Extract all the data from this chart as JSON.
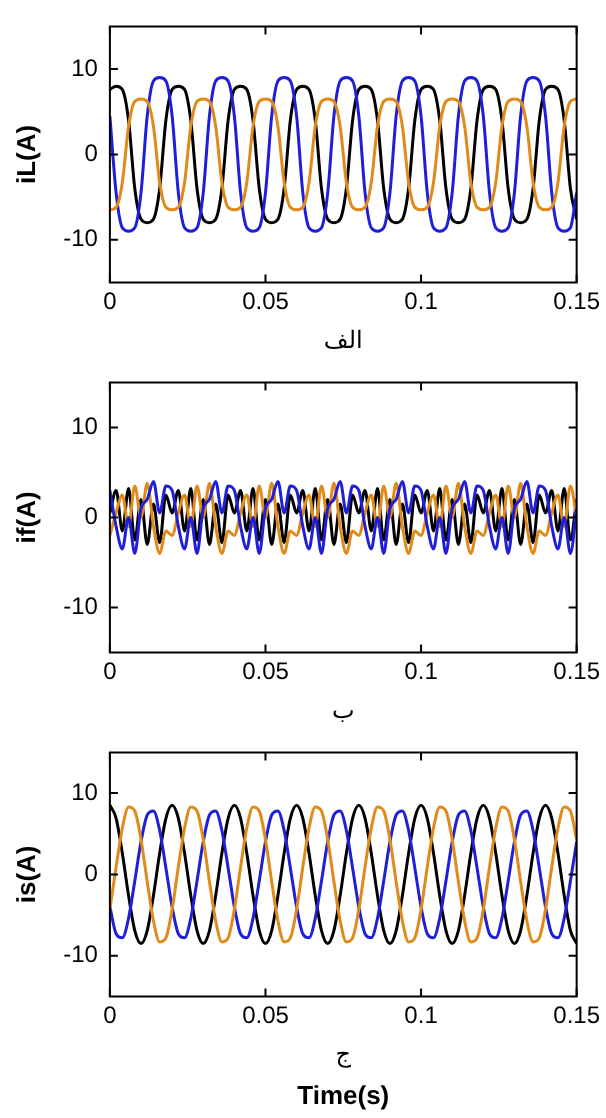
{
  "chart_data": [
    {
      "type": "line",
      "xlabel": "الف",
      "ylabel": "iL(A)",
      "xlim": [
        0,
        0.15
      ],
      "xticks": [
        0,
        0.05,
        0.1,
        0.15
      ],
      "ylim": [
        -15,
        15
      ],
      "yticks": [
        -10,
        0,
        10
      ],
      "x": [
        0,
        0.002,
        0.004,
        0.006,
        0.008,
        0.01,
        0.012,
        0.014,
        0.016,
        0.018,
        0.02,
        0.022,
        0.024,
        0.026,
        0.028,
        0.03,
        0.032,
        0.034,
        0.036,
        0.038,
        0.04,
        0.042,
        0.044,
        0.046,
        0.048,
        0.05,
        0.052,
        0.054,
        0.056,
        0.058,
        0.06,
        0.062,
        0.064,
        0.066,
        0.068,
        0.07,
        0.072,
        0.074,
        0.076,
        0.078,
        0.08,
        0.082,
        0.084,
        0.086,
        0.088,
        0.09,
        0.092,
        0.094,
        0.096,
        0.098,
        0.1,
        0.102,
        0.104,
        0.106,
        0.108,
        0.11,
        0.112,
        0.114,
        0.116,
        0.118,
        0.12,
        0.122,
        0.124,
        0.126,
        0.128,
        0.13,
        0.132,
        0.134,
        0.136,
        0.138,
        0.14,
        0.142,
        0.144,
        0.146,
        0.148,
        0.15
      ],
      "series": [
        {
          "color": "#e08a1a",
          "values": [
            -6.5,
            -6.2,
            -3.3,
            3.3,
            6.2,
            6.5,
            6.2,
            3.3,
            -3.3,
            -6.2,
            -6.5,
            -6.2,
            -3.3,
            3.3,
            6.2,
            6.5,
            6.2,
            3.3,
            -3.3,
            -6.2,
            -6.5,
            -6.2,
            -3.3,
            3.3,
            6.2,
            6.5,
            6.2,
            3.3,
            -3.3,
            -6.2,
            -6.5,
            -6.2,
            -3.3,
            3.3,
            6.2,
            6.5,
            6.2,
            3.3,
            -3.3,
            -6.2,
            -6.5,
            -6.2,
            -3.3,
            3.3,
            6.2,
            6.5,
            6.2,
            3.3,
            -3.3,
            -6.2,
            -6.5,
            -6.2,
            -3.3,
            3.3,
            6.2,
            6.5,
            6.2,
            3.3,
            -3.3,
            -6.2,
            -6.5,
            -6.2,
            -3.3,
            3.3,
            6.2,
            6.5,
            6.2,
            3.3,
            -3.3,
            -6.2,
            -6.5,
            -6.2,
            -3.3,
            3.3,
            6.2,
            6.5
          ]
        },
        {
          "color": "#1f1fd8",
          "values": [
            4.5,
            -4.5,
            -8.6,
            -9,
            -8.6,
            -4.5,
            4.5,
            8.6,
            9,
            8.6,
            4.5,
            -4.5,
            -8.6,
            -9,
            -8.6,
            -4.5,
            4.5,
            8.6,
            9,
            8.6,
            4.5,
            -4.5,
            -8.6,
            -9,
            -8.6,
            -4.5,
            4.5,
            8.6,
            9,
            8.6,
            4.5,
            -4.5,
            -8.6,
            -9,
            -8.6,
            -4.5,
            4.5,
            8.6,
            9,
            8.6,
            4.5,
            -4.5,
            -8.6,
            -9,
            -8.6,
            -4.5,
            4.5,
            8.6,
            9,
            8.6,
            4.5,
            -4.5,
            -8.6,
            -9,
            -8.6,
            -4.5,
            4.5,
            8.6,
            9,
            8.6,
            4.5,
            -4.5,
            -8.6,
            -9,
            -8.6,
            -4.5,
            4.5,
            8.6,
            9,
            8.6,
            4.5,
            -4.5,
            -8.6,
            -9,
            -8.6,
            -4.5
          ]
        },
        {
          "color": "#000000",
          "values": [
            7.6,
            8,
            7.6,
            4,
            -4,
            -7.6,
            -8,
            -7.6,
            -4,
            4,
            7.6,
            8,
            7.6,
            4,
            -4,
            -7.6,
            -8,
            -7.6,
            -4,
            4,
            7.6,
            8,
            7.6,
            4,
            -4,
            -7.6,
            -8,
            -7.6,
            -4,
            4,
            7.6,
            8,
            7.6,
            4,
            -4,
            -7.6,
            -8,
            -7.6,
            -4,
            4,
            7.6,
            8,
            7.6,
            4,
            -4,
            -7.6,
            -8,
            -7.6,
            -4,
            4,
            7.6,
            8,
            7.6,
            4,
            -4,
            -7.6,
            -8,
            -7.6,
            -4,
            4,
            7.6,
            8,
            7.6,
            4,
            -4,
            -7.6,
            -8,
            -7.6,
            -4,
            4,
            7.6,
            8,
            7.6,
            4,
            -4,
            -7.6
          ]
        }
      ]
    },
    {
      "type": "line",
      "xlabel": "ب",
      "ylabel": "if(A)",
      "xlim": [
        0,
        0.15
      ],
      "xticks": [
        0,
        0.05,
        0.1,
        0.15
      ],
      "ylim": [
        -15,
        15
      ],
      "yticks": [
        -10,
        0,
        10
      ],
      "x": [
        0,
        0.002,
        0.004,
        0.006,
        0.008,
        0.01,
        0.012,
        0.014,
        0.016,
        0.018,
        0.02,
        0.022,
        0.024,
        0.026,
        0.028,
        0.03,
        0.032,
        0.034,
        0.036,
        0.038,
        0.04,
        0.042,
        0.044,
        0.046,
        0.048,
        0.05,
        0.052,
        0.054,
        0.056,
        0.058,
        0.06,
        0.062,
        0.064,
        0.066,
        0.068,
        0.07,
        0.072,
        0.074,
        0.076,
        0.078,
        0.08,
        0.082,
        0.084,
        0.086,
        0.088,
        0.09,
        0.092,
        0.094,
        0.096,
        0.098,
        0.1,
        0.102,
        0.104,
        0.106,
        0.108,
        0.11,
        0.112,
        0.114,
        0.116,
        0.118,
        0.12,
        0.122,
        0.124,
        0.126,
        0.128,
        0.13,
        0.132,
        0.134,
        0.136,
        0.138,
        0.14,
        0.142,
        0.144,
        0.146,
        0.148,
        0.15
      ],
      "series": [
        {
          "color": "#1f1fd8",
          "values": [
            3,
            -1,
            -3.5,
            0,
            -4,
            1,
            2,
            4,
            0.5,
            3.5,
            3,
            -1,
            -3.5,
            0,
            -4,
            1,
            2,
            4,
            0.5,
            3.5,
            3,
            -1,
            -3.5,
            0,
            -4,
            1,
            2,
            4,
            0.5,
            3.5,
            3,
            -1,
            -3.5,
            0,
            -4,
            1,
            2,
            4,
            0.5,
            3.5,
            3,
            -1,
            -3.5,
            0,
            -4,
            1,
            2,
            4,
            0.5,
            3.5,
            3,
            -1,
            -3.5,
            0,
            -4,
            1,
            2,
            4,
            0.5,
            3.5,
            3,
            -1,
            -3.5,
            0,
            -4,
            1,
            2,
            4,
            0.5,
            3.5,
            3,
            -1,
            -3.5,
            0,
            -4,
            1
          ]
        },
        {
          "color": "#e08a1a",
          "values": [
            -2,
            0.5,
            2.5,
            -1,
            3.5,
            0,
            3.8,
            -1,
            -4,
            -1.5,
            -2,
            0.5,
            2.5,
            -1,
            3.5,
            0,
            3.8,
            -1,
            -4,
            -1.5,
            -2,
            0.5,
            2.5,
            -1,
            3.5,
            0,
            3.8,
            -1,
            -4,
            -1.5,
            -2,
            0.5,
            2.5,
            -1,
            3.5,
            0,
            3.8,
            -1,
            -4,
            -1.5,
            -2,
            0.5,
            2.5,
            -1,
            3.5,
            0,
            3.8,
            -1,
            -4,
            -1.5,
            -2,
            0.5,
            2.5,
            -1,
            3.5,
            0,
            3.8,
            -1,
            -4,
            -1.5,
            -2,
            0.5,
            2.5,
            -1,
            3.5,
            0,
            3.8,
            -1,
            -4,
            -1.5,
            -2,
            0.5,
            2.5,
            -1,
            3.5,
            0
          ]
        },
        {
          "color": "#000000",
          "values": [
            0.5,
            3,
            -1.5,
            3.2,
            -2.5,
            2,
            -3,
            1.5,
            -2.8,
            2.5,
            0.5,
            3,
            -1.5,
            3.2,
            -2.5,
            2,
            -3,
            1.5,
            -2.8,
            2.5,
            0.5,
            3,
            -1.5,
            3.2,
            -2.5,
            2,
            -3,
            1.5,
            -2.8,
            2.5,
            0.5,
            3,
            -1.5,
            3.2,
            -2.5,
            2,
            -3,
            1.5,
            -2.8,
            2.5,
            0.5,
            3,
            -1.5,
            3.2,
            -2.5,
            2,
            -3,
            1.5,
            -2.8,
            2.5,
            0.5,
            3,
            -1.5,
            3.2,
            -2.5,
            2,
            -3,
            1.5,
            -2.8,
            2.5,
            0.5,
            3,
            -1.5,
            3.2,
            -2.5,
            2,
            -3,
            1.5,
            -2.8,
            2.5,
            0.5,
            3,
            -1.5,
            3.2,
            -2.5,
            2
          ]
        }
      ]
    },
    {
      "type": "line",
      "xlabel": "ج",
      "ylabel": "is(A)",
      "xlim": [
        0,
        0.15
      ],
      "xticks": [
        0,
        0.05,
        0.1,
        0.15
      ],
      "ylim": [
        -15,
        15
      ],
      "yticks": [
        -10,
        0,
        10
      ],
      "annotations": [
        "Time(s)"
      ],
      "x": [
        0,
        0.002,
        0.004,
        0.006,
        0.008,
        0.01,
        0.012,
        0.014,
        0.016,
        0.018,
        0.02,
        0.022,
        0.024,
        0.026,
        0.028,
        0.03,
        0.032,
        0.034,
        0.036,
        0.038,
        0.04,
        0.042,
        0.044,
        0.046,
        0.048,
        0.05,
        0.052,
        0.054,
        0.056,
        0.058,
        0.06,
        0.062,
        0.064,
        0.066,
        0.068,
        0.07,
        0.072,
        0.074,
        0.076,
        0.078,
        0.08,
        0.082,
        0.084,
        0.086,
        0.088,
        0.09,
        0.092,
        0.094,
        0.096,
        0.098,
        0.1,
        0.102,
        0.104,
        0.106,
        0.108,
        0.11,
        0.112,
        0.114,
        0.116,
        0.118,
        0.12,
        0.122,
        0.124,
        0.126,
        0.128,
        0.13,
        0.132,
        0.134,
        0.136,
        0.138,
        0.14,
        0.142,
        0.144,
        0.146,
        0.148,
        0.15
      ],
      "series": [
        {
          "color": "#e08a1a",
          "values": [
            -4.3,
            0.9,
            5.7,
            8.3,
            7.8,
            4.3,
            -0.9,
            -5.7,
            -8.3,
            -7.8,
            -4.3,
            0.9,
            5.7,
            8.3,
            7.8,
            4.3,
            -0.9,
            -5.7,
            -8.3,
            -7.8,
            -4.3,
            0.9,
            5.7,
            8.3,
            7.8,
            4.3,
            -0.9,
            -5.7,
            -8.3,
            -7.8,
            -4.3,
            0.9,
            5.7,
            8.3,
            7.8,
            4.3,
            -0.9,
            -5.7,
            -8.3,
            -7.8,
            -4.3,
            0.9,
            5.7,
            8.3,
            7.8,
            4.3,
            -0.9,
            -5.7,
            -8.3,
            -7.8,
            -4.3,
            0.9,
            5.7,
            8.3,
            7.8,
            4.3,
            -0.9,
            -5.7,
            -8.3,
            -7.8,
            -4.3,
            0.9,
            5.7,
            8.3,
            7.8,
            4.3,
            -0.9,
            -5.7,
            -8.3,
            -7.8,
            -4.3,
            0.9,
            5.7,
            8.3,
            7.8,
            4.3
          ]
        },
        {
          "color": "#1f1fd8",
          "values": [
            -4,
            -7.3,
            -7.8,
            -5.4,
            -0.8,
            4,
            7.3,
            7.8,
            5.4,
            0.8,
            -4,
            -7.3,
            -7.8,
            -5.4,
            -0.8,
            4,
            7.3,
            7.8,
            5.4,
            0.8,
            -4,
            -7.3,
            -7.8,
            -5.4,
            -0.8,
            4,
            7.3,
            7.8,
            5.4,
            0.8,
            -4,
            -7.3,
            -7.8,
            -5.4,
            -0.8,
            4,
            7.3,
            7.8,
            5.4,
            0.8,
            -4,
            -7.3,
            -7.8,
            -5.4,
            -0.8,
            4,
            7.3,
            7.8,
            5.4,
            0.8,
            -4,
            -7.3,
            -7.8,
            -5.4,
            -0.8,
            4,
            7.3,
            7.8,
            5.4,
            0.8,
            -4,
            -7.3,
            -7.8,
            -5.4,
            -0.8,
            4,
            7.3,
            7.8,
            5.4,
            0.8,
            -4,
            -7.3,
            -7.8,
            -5.4,
            -0.8,
            4
          ]
        },
        {
          "color": "#000000",
          "values": [
            8.5,
            6.9,
            2.6,
            -2.6,
            -6.9,
            -8.5,
            -6.9,
            -2.6,
            2.6,
            6.9,
            8.5,
            6.9,
            2.6,
            -2.6,
            -6.9,
            -8.5,
            -6.9,
            -2.6,
            2.6,
            6.9,
            8.5,
            6.9,
            2.6,
            -2.6,
            -6.9,
            -8.5,
            -6.9,
            -2.6,
            2.6,
            6.9,
            8.5,
            6.9,
            2.6,
            -2.6,
            -6.9,
            -8.5,
            -6.9,
            -2.6,
            2.6,
            6.9,
            8.5,
            6.9,
            2.6,
            -2.6,
            -6.9,
            -8.5,
            -6.9,
            -2.6,
            2.6,
            6.9,
            8.5,
            6.9,
            2.6,
            -2.6,
            -6.9,
            -8.5,
            -6.9,
            -2.6,
            2.6,
            6.9,
            8.5,
            6.9,
            2.6,
            -2.6,
            -6.9,
            -8.5,
            -6.9,
            -2.6,
            2.6,
            6.9,
            8.5,
            6.9,
            2.6,
            -2.6,
            -6.9,
            -8.5
          ]
        }
      ]
    }
  ]
}
